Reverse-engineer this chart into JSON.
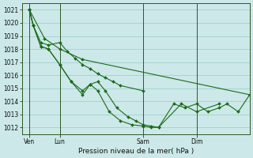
{
  "title": "Pression niveau de la mer( hPa )",
  "ylim": [
    1011.5,
    1021.5
  ],
  "yticks": [
    1012,
    1013,
    1014,
    1015,
    1016,
    1017,
    1018,
    1019,
    1020,
    1021
  ],
  "background_color": "#cce8e8",
  "grid_color": "#99cccc",
  "line_color": "#1a6b1a",
  "marker": "D",
  "markersize": 2.0,
  "linewidth": 0.8,
  "xtick_labels": [
    "Ven",
    "Lun",
    "Sam",
    "Dim"
  ],
  "xtick_positions": [
    0,
    8,
    30,
    44
  ],
  "xmin": -2,
  "xmax": 58,
  "vlines": [
    0,
    8,
    30,
    44
  ],
  "series": [
    [
      1021,
      1018.8,
      1018.0,
      1017.2,
      1014.5
    ],
    [
      1021,
      1019.8,
      1018.5,
      1018.3,
      1018.5,
      1017.8,
      1017.3,
      1016.8,
      1016.5,
      1016.1,
      1015.8,
      1015.5,
      1015.2,
      1014.8
    ],
    [
      1021,
      1019.8,
      1018.2,
      1018.0,
      1016.8,
      1015.5,
      1014.8,
      1015.3,
      1015.5,
      1014.8,
      1013.5,
      1012.8,
      1012.5,
      1012.2,
      1012.1,
      1012.0,
      1013.8,
      1013.5,
      1013.8,
      1013.2,
      1013.5,
      1013.8,
      1013.2,
      1014.5
    ],
    [
      1021,
      1019.8,
      1018.2,
      1018.0,
      1016.8,
      1015.5,
      1014.5,
      1015.3,
      1014.8,
      1013.2,
      1012.5,
      1012.2,
      1012.1,
      1012.0,
      1012.0,
      1013.8,
      1013.2,
      1013.8
    ]
  ],
  "series_x": [
    [
      0,
      4,
      8,
      14,
      58
    ],
    [
      0,
      1,
      3,
      5,
      8,
      10,
      12,
      14,
      16,
      18,
      20,
      22,
      24,
      30
    ],
    [
      0,
      1,
      3,
      5,
      8,
      11,
      14,
      16,
      18,
      20,
      23,
      26,
      28,
      30,
      32,
      34,
      38,
      41,
      44,
      47,
      50,
      52,
      55,
      58
    ],
    [
      0,
      1,
      3,
      5,
      8,
      11,
      14,
      16,
      18,
      21,
      24,
      27,
      30,
      32,
      34,
      40,
      44,
      50
    ]
  ],
  "ytick_fontsize": 5.5,
  "xtick_fontsize": 5.5,
  "xlabel_fontsize": 6.5
}
